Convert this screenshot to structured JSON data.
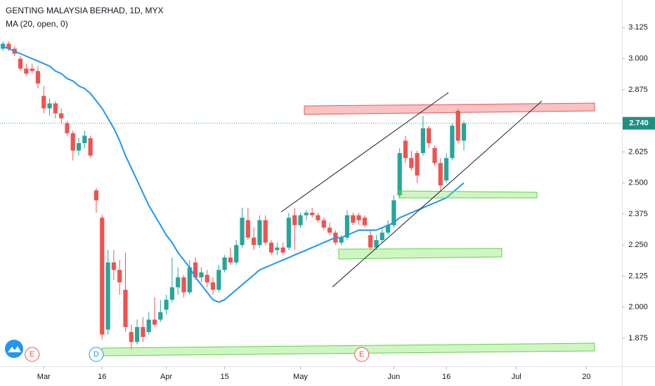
{
  "chart_data": {
    "type": "candlestick",
    "title": "GENTING MALAYSIA BERHAD, 1D, MYX",
    "colors": {
      "up": "#26a69a",
      "down": "#ef5350"
    },
    "candles": [
      {
        "o": 3.04,
        "h": 3.07,
        "l": 3.03,
        "c": 3.06
      },
      {
        "o": 3.06,
        "h": 3.07,
        "l": 3.03,
        "c": 3.04
      },
      {
        "o": 3.04,
        "h": 3.05,
        "l": 3.01,
        "c": 3.02
      },
      {
        "o": 3.0,
        "h": 3.01,
        "l": 2.95,
        "c": 2.96
      },
      {
        "o": 2.96,
        "h": 2.98,
        "l": 2.93,
        "c": 2.94
      },
      {
        "o": 2.96,
        "h": 2.98,
        "l": 2.94,
        "c": 2.95
      },
      {
        "o": 2.95,
        "h": 2.97,
        "l": 2.88,
        "c": 2.9
      },
      {
        "o": 2.85,
        "h": 2.89,
        "l": 2.78,
        "c": 2.8
      },
      {
        "o": 2.8,
        "h": 2.84,
        "l": 2.77,
        "c": 2.82
      },
      {
        "o": 2.82,
        "h": 2.83,
        "l": 2.76,
        "c": 2.78
      },
      {
        "o": 2.78,
        "h": 2.8,
        "l": 2.74,
        "c": 2.76
      },
      {
        "o": 2.74,
        "h": 2.75,
        "l": 2.69,
        "c": 2.7
      },
      {
        "o": 2.7,
        "h": 2.71,
        "l": 2.59,
        "c": 2.63
      },
      {
        "o": 2.63,
        "h": 2.68,
        "l": 2.61,
        "c": 2.66
      },
      {
        "o": 2.66,
        "h": 2.71,
        "l": 2.64,
        "c": 2.69
      },
      {
        "o": 2.68,
        "h": 2.69,
        "l": 2.6,
        "c": 2.61
      },
      {
        "o": 2.47,
        "h": 2.48,
        "l": 2.38,
        "c": 2.43
      },
      {
        "o": 2.36,
        "h": 2.37,
        "l": 1.87,
        "c": 1.89
      },
      {
        "o": 1.91,
        "h": 2.23,
        "l": 1.89,
        "c": 2.18
      },
      {
        "o": 2.18,
        "h": 2.23,
        "l": 2.11,
        "c": 2.15
      },
      {
        "o": 2.15,
        "h": 2.19,
        "l": 2.05,
        "c": 2.1
      },
      {
        "o": 2.07,
        "h": 2.22,
        "l": 1.9,
        "c": 1.92
      },
      {
        "o": 1.9,
        "h": 1.93,
        "l": 1.83,
        "c": 1.86
      },
      {
        "o": 1.86,
        "h": 1.95,
        "l": 1.85,
        "c": 1.92
      },
      {
        "o": 1.92,
        "h": 1.96,
        "l": 1.86,
        "c": 1.88
      },
      {
        "o": 1.9,
        "h": 1.98,
        "l": 1.89,
        "c": 1.95
      },
      {
        "o": 1.95,
        "h": 2.04,
        "l": 1.92,
        "c": 1.93
      },
      {
        "o": 1.95,
        "h": 2.03,
        "l": 1.94,
        "c": 1.98
      },
      {
        "o": 1.99,
        "h": 2.05,
        "l": 1.97,
        "c": 2.03
      },
      {
        "o": 2.03,
        "h": 2.2,
        "l": 2.02,
        "c": 2.08
      },
      {
        "o": 2.08,
        "h": 2.16,
        "l": 2.05,
        "c": 2.12
      },
      {
        "o": 2.12,
        "h": 2.13,
        "l": 2.04,
        "c": 2.06
      },
      {
        "o": 2.06,
        "h": 2.19,
        "l": 2.05,
        "c": 2.16
      },
      {
        "o": 2.18,
        "h": 2.2,
        "l": 2.11,
        "c": 2.12
      },
      {
        "o": 2.12,
        "h": 2.16,
        "l": 2.1,
        "c": 2.14
      },
      {
        "o": 2.13,
        "h": 2.15,
        "l": 2.08,
        "c": 2.1
      },
      {
        "o": 2.1,
        "h": 2.12,
        "l": 2.05,
        "c": 2.07
      },
      {
        "o": 2.07,
        "h": 2.17,
        "l": 2.06,
        "c": 2.15
      },
      {
        "o": 2.15,
        "h": 2.21,
        "l": 2.14,
        "c": 2.2
      },
      {
        "o": 2.2,
        "h": 2.24,
        "l": 2.17,
        "c": 2.18
      },
      {
        "o": 2.18,
        "h": 2.27,
        "l": 2.17,
        "c": 2.25
      },
      {
        "o": 2.25,
        "h": 2.4,
        "l": 2.24,
        "c": 2.36
      },
      {
        "o": 2.35,
        "h": 2.4,
        "l": 2.27,
        "c": 2.28
      },
      {
        "o": 2.28,
        "h": 2.32,
        "l": 2.23,
        "c": 2.25
      },
      {
        "o": 2.25,
        "h": 2.37,
        "l": 2.24,
        "c": 2.35
      },
      {
        "o": 2.35,
        "h": 2.37,
        "l": 2.25,
        "c": 2.26
      },
      {
        "o": 2.26,
        "h": 2.27,
        "l": 2.21,
        "c": 2.22
      },
      {
        "o": 2.23,
        "h": 2.26,
        "l": 2.21,
        "c": 2.24
      },
      {
        "o": 2.24,
        "h": 2.26,
        "l": 2.21,
        "c": 2.22
      },
      {
        "o": 2.24,
        "h": 2.38,
        "l": 2.23,
        "c": 2.36
      },
      {
        "o": 2.37,
        "h": 2.4,
        "l": 2.23,
        "c": 2.33
      },
      {
        "o": 2.33,
        "h": 2.38,
        "l": 2.32,
        "c": 2.37
      },
      {
        "o": 2.37,
        "h": 2.39,
        "l": 2.35,
        "c": 2.38
      },
      {
        "o": 2.38,
        "h": 2.4,
        "l": 2.36,
        "c": 2.37
      },
      {
        "o": 2.37,
        "h": 2.38,
        "l": 2.34,
        "c": 2.35
      },
      {
        "o": 2.35,
        "h": 2.36,
        "l": 2.31,
        "c": 2.32
      },
      {
        "o": 2.32,
        "h": 2.34,
        "l": 2.29,
        "c": 2.3
      },
      {
        "o": 2.3,
        "h": 2.31,
        "l": 2.25,
        "c": 2.26
      },
      {
        "o": 2.26,
        "h": 2.29,
        "l": 2.25,
        "c": 2.28
      },
      {
        "o": 2.28,
        "h": 2.39,
        "l": 2.27,
        "c": 2.37
      },
      {
        "o": 2.37,
        "h": 2.38,
        "l": 2.33,
        "c": 2.34
      },
      {
        "o": 2.37,
        "h": 2.38,
        "l": 2.33,
        "c": 2.35
      },
      {
        "o": 2.36,
        "h": 2.37,
        "l": 2.32,
        "c": 2.33
      },
      {
        "o": 2.29,
        "h": 2.31,
        "l": 2.23,
        "c": 2.24
      },
      {
        "o": 2.24,
        "h": 2.29,
        "l": 2.23,
        "c": 2.27
      },
      {
        "o": 2.27,
        "h": 2.32,
        "l": 2.26,
        "c": 2.3
      },
      {
        "o": 2.3,
        "h": 2.35,
        "l": 2.29,
        "c": 2.33
      },
      {
        "o": 2.33,
        "h": 2.45,
        "l": 2.32,
        "c": 2.43
      },
      {
        "o": 2.45,
        "h": 2.64,
        "l": 2.44,
        "c": 2.62
      },
      {
        "o": 2.67,
        "h": 2.69,
        "l": 2.58,
        "c": 2.6
      },
      {
        "o": 2.6,
        "h": 2.63,
        "l": 2.55,
        "c": 2.56
      },
      {
        "o": 2.62,
        "h": 2.63,
        "l": 2.5,
        "c": 2.53
      },
      {
        "o": 2.62,
        "h": 2.77,
        "l": 2.61,
        "c": 2.72
      },
      {
        "o": 2.72,
        "h": 2.73,
        "l": 2.64,
        "c": 2.66
      },
      {
        "o": 2.64,
        "h": 2.65,
        "l": 2.57,
        "c": 2.58
      },
      {
        "o": 2.58,
        "h": 2.6,
        "l": 2.47,
        "c": 2.49
      },
      {
        "o": 2.51,
        "h": 2.62,
        "l": 2.5,
        "c": 2.6
      },
      {
        "o": 2.6,
        "h": 2.74,
        "l": 2.59,
        "c": 2.73
      },
      {
        "o": 2.79,
        "h": 2.8,
        "l": 2.66,
        "c": 2.67
      },
      {
        "o": 2.67,
        "h": 2.75,
        "l": 2.63,
        "c": 2.74
      }
    ],
    "ma": {
      "name": "MA (20, open, 0)",
      "color": "#2196f3",
      "values": [
        3.05,
        3.04,
        3.03,
        3.02,
        3.01,
        3.0,
        2.99,
        2.98,
        2.97,
        2.95,
        2.94,
        2.92,
        2.91,
        2.89,
        2.88,
        2.86,
        2.83,
        2.8,
        2.76,
        2.72,
        2.67,
        2.61,
        2.56,
        2.51,
        2.46,
        2.41,
        2.37,
        2.33,
        2.29,
        2.26,
        2.22,
        2.19,
        2.16,
        2.12,
        2.09,
        2.06,
        2.03,
        2.02,
        2.03,
        2.05,
        2.07,
        2.09,
        2.11,
        2.13,
        2.15,
        2.16,
        2.17,
        2.18,
        2.19,
        2.2,
        2.21,
        2.22,
        2.23,
        2.24,
        2.25,
        2.26,
        2.27,
        2.28,
        2.28,
        2.29,
        2.3,
        2.31,
        2.31,
        2.31,
        2.31,
        2.32,
        2.33,
        2.34,
        2.36,
        2.37,
        2.38,
        2.39,
        2.4,
        2.41,
        2.42,
        2.43,
        2.44,
        2.46,
        2.48,
        2.5
      ]
    },
    "last_price": {
      "value": 2.74,
      "label": "2.740"
    },
    "ylim": [
      1.762,
      3.236
    ],
    "yticks": [
      1.875,
      {
        "value": 2.0,
        "label": "2.000"
      },
      2.125,
      {
        "value": 2.25,
        "label": "2.250"
      },
      2.375,
      {
        "value": 2.5,
        "label": "2.500"
      },
      2.625,
      2.875,
      {
        "value": 3.0,
        "label": "3.000"
      },
      3.125
    ],
    "xlim": [
      -0.5,
      106.1
    ],
    "xticks": [
      {
        "value": 7,
        "label": "Mar"
      },
      {
        "value": 17,
        "label": "16"
      },
      {
        "value": 28,
        "label": "Apr"
      },
      {
        "value": 38,
        "label": "15"
      },
      {
        "value": 51,
        "label": "May"
      },
      {
        "value": 67,
        "label": "Jun"
      },
      {
        "value": 76,
        "label": "16"
      },
      {
        "value": 88,
        "label": "Jul"
      },
      {
        "value": 100,
        "label": "20"
      }
    ],
    "events": [
      {
        "label": "E",
        "x": 5
      },
      {
        "label": "D",
        "x": 16
      },
      {
        "label": "E",
        "x": 61.5
      }
    ]
  }
}
